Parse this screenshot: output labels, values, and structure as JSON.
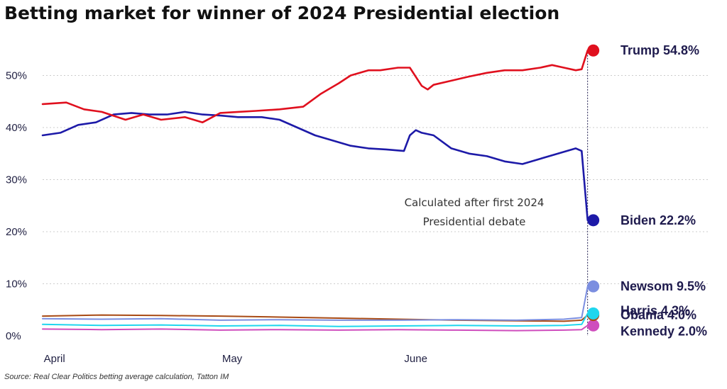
{
  "title": "Betting market for winner of 2024 Presidential election",
  "source": "Source: Real Clear Politics betting average calculation, Tatton IM",
  "chart_data": {
    "type": "line",
    "title": "Betting market for winner of 2024 Presidential election",
    "xlabel": "",
    "ylabel": "",
    "ylim": [
      -1,
      57
    ],
    "yticks": [
      0,
      10,
      20,
      30,
      40,
      50
    ],
    "ytick_labels": [
      "0%",
      "10%",
      "20%",
      "30%",
      "40%",
      "50%"
    ],
    "xtick_labels": [
      "April",
      "May",
      "June"
    ],
    "xtick_positions": [
      2,
      32,
      63
    ],
    "xlim": [
      0,
      93
    ],
    "grid": "horizontal",
    "annotation": [
      "Calculated after first 2024",
      "Presidential debate"
    ],
    "series": [
      {
        "name": "Trump",
        "end_label": "Trump 54.8%",
        "color": "#e0101e",
        "x": [
          0,
          4,
          7,
          10,
          14,
          17,
          20,
          24,
          27,
          30,
          33,
          36,
          40,
          44,
          47,
          50,
          52,
          55,
          57,
          60,
          62,
          64,
          65,
          66,
          69,
          72,
          75,
          78,
          81,
          84,
          86,
          88,
          90,
          91,
          92
        ],
        "values": [
          44.5,
          44.8,
          43.5,
          43,
          41.5,
          42.5,
          41.5,
          42,
          41,
          42.8,
          43,
          43.2,
          43.5,
          44,
          46.5,
          48.5,
          50,
          51,
          51,
          51.5,
          51.5,
          48,
          47.3,
          48.2,
          49,
          49.8,
          50.5,
          51,
          51,
          51.5,
          52,
          51.5,
          51,
          51.2,
          54.8
        ]
      },
      {
        "name": "Biden",
        "end_label": "Biden 22.2%",
        "color": "#1d1aa8",
        "x": [
          0,
          3,
          6,
          9,
          12,
          15,
          18,
          21,
          24,
          27,
          30,
          33,
          37,
          40,
          43,
          46,
          49,
          52,
          55,
          58,
          61,
          62,
          63,
          64,
          66,
          69,
          72,
          75,
          78,
          81,
          84,
          87,
          90,
          91,
          92
        ],
        "values": [
          38.5,
          39,
          40.5,
          41,
          42.5,
          42.8,
          42.5,
          42.5,
          43,
          42.5,
          42.3,
          42,
          42,
          41.5,
          40,
          38.5,
          37.5,
          36.5,
          36,
          35.8,
          35.5,
          38.5,
          39.5,
          39,
          38.5,
          36,
          35,
          34.5,
          33.5,
          33,
          34,
          35,
          36,
          35.5,
          22.2
        ]
      },
      {
        "name": "Newsom",
        "end_label": "Newsom 9.5%",
        "color": "#7b8ee0",
        "x": [
          0,
          10,
          20,
          30,
          40,
          50,
          60,
          70,
          80,
          88,
          91,
          92
        ],
        "values": [
          3.3,
          3.2,
          3.3,
          3.0,
          3.1,
          3.0,
          3.0,
          3.1,
          3.0,
          3.2,
          3.5,
          9.5
        ]
      },
      {
        "name": "Harris",
        "end_label": "Harris 4.3%",
        "color": "#20d6ee",
        "x": [
          0,
          10,
          20,
          30,
          40,
          50,
          60,
          70,
          80,
          88,
          91,
          92
        ],
        "values": [
          2.2,
          2.0,
          2.1,
          1.9,
          2.0,
          1.8,
          1.9,
          2.0,
          1.9,
          2.0,
          2.2,
          4.3
        ]
      },
      {
        "name": "Obama",
        "end_label": "Obama 4.0%",
        "color": "#a84a14",
        "x": [
          0,
          10,
          20,
          30,
          40,
          50,
          60,
          70,
          80,
          88,
          91,
          92
        ],
        "values": [
          3.8,
          4.0,
          3.9,
          3.8,
          3.6,
          3.4,
          3.2,
          3.0,
          2.9,
          2.8,
          3.0,
          4.0
        ]
      },
      {
        "name": "Kennedy",
        "end_label": "Kennedy 2.0%",
        "color": "#cf4dbd",
        "x": [
          0,
          10,
          20,
          30,
          40,
          50,
          60,
          70,
          80,
          88,
          91,
          92
        ],
        "values": [
          1.3,
          1.2,
          1.3,
          1.1,
          1.2,
          1.1,
          1.2,
          1.1,
          1.0,
          1.1,
          1.2,
          2.0
        ]
      }
    ]
  }
}
